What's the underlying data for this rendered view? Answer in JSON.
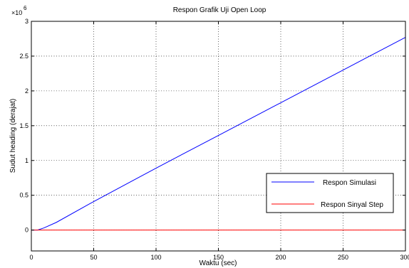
{
  "chart_data": {
    "type": "line",
    "title": "Respon Grafik Uji Open Loop",
    "xlabel": "Waktu (sec)",
    "ylabel": "Sudut heading (derajat)",
    "y_exponent_label": "×10",
    "y_exponent_power": "6",
    "xlim": [
      0,
      300
    ],
    "ylim": [
      -0.3,
      3
    ],
    "grid": true,
    "legend_position": "lower-right",
    "x_ticks": [
      0,
      50,
      100,
      150,
      200,
      250,
      300
    ],
    "x_tick_labels": [
      "0",
      "50",
      "100",
      "150",
      "200",
      "250",
      "300"
    ],
    "y_ticks": [
      0,
      0.5,
      1,
      1.5,
      2,
      2.5,
      3
    ],
    "y_tick_labels": [
      "0",
      "0.5",
      "1",
      "1.5",
      "2",
      "2.5",
      "3"
    ],
    "series": [
      {
        "name": "Respon Simulasi",
        "color": "#0000ff",
        "x": [
          0,
          5,
          10,
          20,
          50,
          100,
          150,
          200,
          250,
          300
        ],
        "y": [
          0,
          0,
          0.03,
          0.11,
          0.41,
          0.89,
          1.36,
          1.83,
          2.3,
          2.77
        ]
      },
      {
        "name": "Respon Sinyal Step",
        "color": "#ff0000",
        "x": [
          0,
          300
        ],
        "y": [
          0,
          0
        ]
      }
    ]
  }
}
